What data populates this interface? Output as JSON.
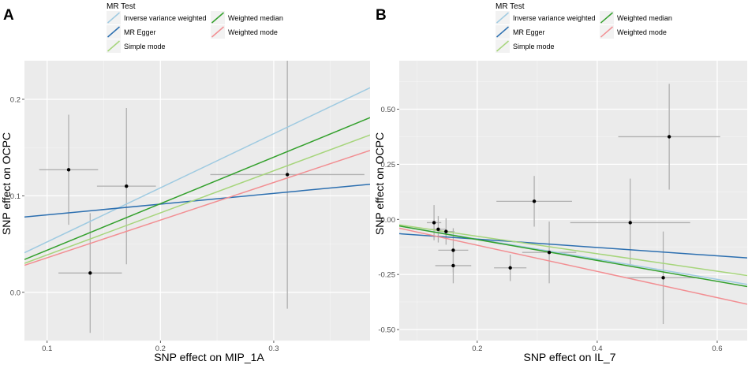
{
  "colors": {
    "panel_bg": "#ebebeb",
    "grid_major": "#ffffff",
    "errorbar": "#b0b0b0",
    "point": "#000000"
  },
  "methods": [
    {
      "key": "ivw",
      "name": "Inverse variance weighted",
      "color": "#9ecae1"
    },
    {
      "key": "egger",
      "name": "MR Egger",
      "color": "#2c6fb0"
    },
    {
      "key": "smode",
      "name": "Simple mode",
      "color": "#a6d57b"
    },
    {
      "key": "wmedian",
      "name": "Weighted median",
      "color": "#33a02c"
    },
    {
      "key": "wmode",
      "name": "Weighted mode",
      "color": "#f28e92"
    }
  ],
  "chart_data": [
    {
      "panel": "A",
      "type": "scatter",
      "legend_title": "MR Test",
      "xlabel": "SNP effect on MIP_1A",
      "ylabel": "SNP effect on OCPC",
      "xlim": [
        0.08,
        0.385
      ],
      "ylim": [
        -0.05,
        0.24
      ],
      "xticks": [
        {
          "v": 0.1,
          "label": "0.1"
        },
        {
          "v": 0.2,
          "label": "0.2"
        },
        {
          "v": 0.3,
          "label": "0.3"
        }
      ],
      "yticks": [
        {
          "v": 0.0,
          "label": "0.0"
        },
        {
          "v": 0.1,
          "label": "0.1"
        },
        {
          "v": 0.2,
          "label": "0.2"
        }
      ],
      "points": [
        {
          "x": 0.119,
          "y": 0.127,
          "xerr": 0.026,
          "yerr": 0.057
        },
        {
          "x": 0.138,
          "y": 0.02,
          "xerr": 0.028,
          "yerr": 0.062
        },
        {
          "x": 0.17,
          "y": 0.11,
          "xerr": 0.026,
          "yerr": 0.081
        },
        {
          "x": 0.312,
          "y": 0.122,
          "xerr": 0.068,
          "yerr": 0.139
        }
      ],
      "lines": [
        {
          "method": "ivw",
          "x": [
            0.08,
            0.385
          ],
          "y": [
            0.041,
            0.212
          ]
        },
        {
          "method": "egger",
          "x": [
            0.08,
            0.385
          ],
          "y": [
            0.078,
            0.112
          ]
        },
        {
          "method": "smode",
          "x": [
            0.08,
            0.385
          ],
          "y": [
            0.03,
            0.163
          ]
        },
        {
          "method": "wmedian",
          "x": [
            0.08,
            0.385
          ],
          "y": [
            0.034,
            0.181
          ]
        },
        {
          "method": "wmode",
          "x": [
            0.08,
            0.385
          ],
          "y": [
            0.028,
            0.147
          ]
        }
      ]
    },
    {
      "panel": "B",
      "type": "scatter",
      "legend_title": "MR Test",
      "xlabel": "SNP effect on IL_7",
      "ylabel": "SNP effect on OCPC",
      "xlim": [
        0.07,
        0.65
      ],
      "ylim": [
        -0.55,
        0.72
      ],
      "xticks": [
        {
          "v": 0.2,
          "label": "0.2"
        },
        {
          "v": 0.4,
          "label": "0.4"
        },
        {
          "v": 0.6,
          "label": "0.6"
        }
      ],
      "yticks": [
        {
          "v": -0.5,
          "label": "-0.50"
        },
        {
          "v": -0.25,
          "label": "-0.25"
        },
        {
          "v": 0.0,
          "label": "0.00"
        },
        {
          "v": 0.25,
          "label": "0.25"
        },
        {
          "v": 0.5,
          "label": "0.50"
        }
      ],
      "points": [
        {
          "x": 0.128,
          "y": -0.015,
          "xerr": 0.012,
          "yerr": 0.08
        },
        {
          "x": 0.135,
          "y": -0.045,
          "xerr": 0.013,
          "yerr": 0.06
        },
        {
          "x": 0.148,
          "y": -0.055,
          "xerr": 0.014,
          "yerr": 0.06
        },
        {
          "x": 0.16,
          "y": -0.14,
          "xerr": 0.025,
          "yerr": 0.1
        },
        {
          "x": 0.16,
          "y": -0.21,
          "xerr": 0.03,
          "yerr": 0.08
        },
        {
          "x": 0.255,
          "y": -0.22,
          "xerr": 0.027,
          "yerr": 0.06
        },
        {
          "x": 0.295,
          "y": 0.082,
          "xerr": 0.063,
          "yerr": 0.115
        },
        {
          "x": 0.32,
          "y": -0.15,
          "xerr": 0.045,
          "yerr": 0.14
        },
        {
          "x": 0.455,
          "y": -0.015,
          "xerr": 0.1,
          "yerr": 0.2
        },
        {
          "x": 0.51,
          "y": -0.265,
          "xerr": 0.06,
          "yerr": 0.21
        },
        {
          "x": 0.52,
          "y": 0.375,
          "xerr": 0.085,
          "yerr": 0.24
        }
      ],
      "lines": [
        {
          "method": "ivw",
          "x": [
            0.07,
            0.65
          ],
          "y": [
            -0.03,
            -0.295
          ]
        },
        {
          "method": "egger",
          "x": [
            0.07,
            0.65
          ],
          "y": [
            -0.065,
            -0.175
          ]
        },
        {
          "method": "smode",
          "x": [
            0.07,
            0.65
          ],
          "y": [
            -0.025,
            -0.255
          ]
        },
        {
          "method": "wmedian",
          "x": [
            0.07,
            0.65
          ],
          "y": [
            -0.03,
            -0.305
          ]
        },
        {
          "method": "wmode",
          "x": [
            0.07,
            0.65
          ],
          "y": [
            -0.04,
            -0.385
          ]
        }
      ]
    }
  ]
}
